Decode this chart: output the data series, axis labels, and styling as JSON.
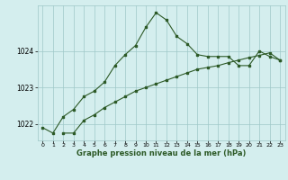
{
  "line1_x": [
    0,
    1,
    2,
    3,
    4,
    5,
    6,
    7,
    8,
    9,
    10,
    11,
    12,
    13,
    14,
    15,
    16,
    17,
    18,
    19,
    20,
    21,
    22,
    23
  ],
  "line1_y": [
    1021.9,
    1021.75,
    1022.2,
    1022.4,
    1022.75,
    1022.9,
    1023.15,
    1023.6,
    1023.9,
    1024.15,
    1024.65,
    1025.05,
    1024.85,
    1024.4,
    1024.2,
    1023.9,
    1023.85,
    1023.85,
    1023.85,
    1023.6,
    1023.6,
    1024.0,
    1023.85,
    1023.75
  ],
  "line2_x": [
    2,
    3,
    4,
    5,
    6,
    7,
    8,
    9,
    10,
    11,
    12,
    13,
    14,
    15,
    16,
    17,
    18,
    19,
    20,
    21,
    22,
    23
  ],
  "line2_y": [
    1021.75,
    1021.75,
    1022.1,
    1022.25,
    1022.45,
    1022.6,
    1022.75,
    1022.9,
    1023.0,
    1023.1,
    1023.2,
    1023.3,
    1023.4,
    1023.5,
    1023.55,
    1023.6,
    1023.68,
    1023.75,
    1023.82,
    1023.88,
    1023.95,
    1023.75
  ],
  "line_color": "#2d5a27",
  "bg_color": "#d4eeee",
  "grid_color": "#9ec8c8",
  "xlabel": "Graphe pression niveau de la mer (hPa)",
  "ylim": [
    1021.55,
    1025.25
  ],
  "yticks": [
    1022,
    1023,
    1024
  ],
  "xlim": [
    -0.5,
    23.5
  ],
  "xticks": [
    0,
    1,
    2,
    3,
    4,
    5,
    6,
    7,
    8,
    9,
    10,
    11,
    12,
    13,
    14,
    15,
    16,
    17,
    18,
    19,
    20,
    21,
    22,
    23
  ],
  "title_color": "#2d5a27",
  "marker_size": 2.0,
  "line_width": 0.8
}
